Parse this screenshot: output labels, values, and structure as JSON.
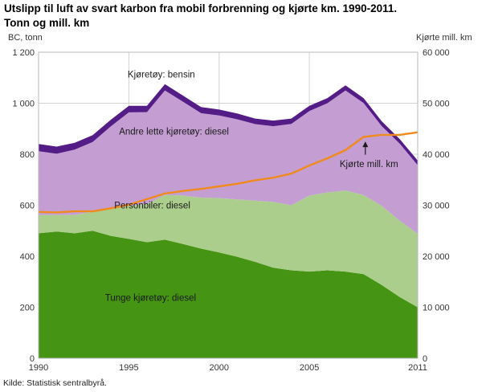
{
  "title": {
    "line1": "Utslipp til luft av svart karbon fra mobil forbrenning og kjørte km. 1990-2011.",
    "line2": "Tonn og mill. km"
  },
  "source": "Kilde: Statistisk sentralbyrå.",
  "axes": {
    "left": {
      "caption": "BC, tonn",
      "range": [
        0,
        1200
      ],
      "ticks_values": [
        0,
        200,
        400,
        600,
        800,
        1000,
        1200
      ],
      "ticks_labels": [
        "0",
        "200",
        "400",
        "600",
        "800",
        "1 000",
        "1 200"
      ]
    },
    "right": {
      "caption": "Kjørte mill. km",
      "range": [
        0,
        60000
      ],
      "ticks_values": [
        0,
        10000,
        20000,
        30000,
        40000,
        50000,
        60000
      ],
      "ticks_labels": [
        "0",
        "10 000",
        "20 000",
        "30 000",
        "40 000",
        "50 000",
        "60 000"
      ]
    },
    "x": {
      "range": [
        1990,
        2011
      ],
      "ticks_values": [
        1990,
        1995,
        2000,
        2005,
        2011
      ],
      "ticks_labels": [
        "1990",
        "1995",
        "2000",
        "2005",
        "2011"
      ]
    }
  },
  "chart_data": {
    "type": "area",
    "stacked": true,
    "title": "Utslipp til luft av svart karbon fra mobil forbrenning og kjørte km. 1990-2011. Tonn og mill. km",
    "xlabel": "",
    "ylabel_left": "BC, tonn",
    "ylabel_right": "Kjørte mill. km",
    "ylim_left": [
      0,
      1200
    ],
    "ylim_right": [
      0,
      60000
    ],
    "grid": true,
    "x": [
      1990,
      1991,
      1992,
      1993,
      1994,
      1995,
      1996,
      1997,
      1998,
      1999,
      2000,
      2001,
      2002,
      2003,
      2004,
      2005,
      2006,
      2007,
      2008,
      2009,
      2010,
      2011
    ],
    "series": [
      {
        "name": "Tunge kjøretøy: diesel",
        "type": "area",
        "axis": "left",
        "color": "#459413",
        "values": [
          490,
          497,
          490,
          500,
          480,
          468,
          455,
          465,
          448,
          430,
          415,
          398,
          378,
          355,
          345,
          340,
          345,
          340,
          330,
          288,
          240,
          200
        ]
      },
      {
        "name": "Personbiler: diesel",
        "type": "area",
        "axis": "left",
        "color": "#abce8d",
        "values": [
          72,
          65,
          72,
          75,
          108,
          130,
          150,
          175,
          190,
          200,
          213,
          225,
          240,
          258,
          255,
          298,
          305,
          318,
          310,
          310,
          300,
          288
        ]
      },
      {
        "name": "Andre lette kjøretøy: diesel",
        "type": "area",
        "axis": "left",
        "color": "#c49ed3",
        "values": [
          250,
          240,
          256,
          273,
          321,
          366,
          360,
          410,
          368,
          331,
          324,
          314,
          300,
          297,
          319,
          331,
          350,
          392,
          361,
          313,
          302,
          269
        ]
      },
      {
        "name": "Kjøretøy: bensin",
        "type": "area",
        "axis": "left",
        "color": "#541c87",
        "values": [
          28,
          28,
          27,
          27,
          26,
          26,
          25,
          25,
          24,
          24,
          23,
          23,
          22,
          22,
          21,
          21,
          20,
          20,
          19,
          19,
          18,
          18
        ]
      },
      {
        "name": "Kjørte mill. km",
        "type": "line",
        "axis": "right",
        "color": "#f08a1d",
        "values": [
          28700,
          28600,
          28800,
          28800,
          29400,
          30100,
          31200,
          32300,
          32800,
          33200,
          33700,
          34200,
          34900,
          35400,
          36200,
          37800,
          39200,
          40800,
          43400,
          43800,
          43800,
          44300
        ]
      }
    ],
    "annotations": [
      {
        "text": "Kjøretøy: bensin",
        "year": 1996.8,
        "value": 1113
      },
      {
        "text": "Andre lette kjøretøy: diesel",
        "year": 1997.5,
        "value": 890
      },
      {
        "text": "Personbiler: diesel",
        "year": 1996.3,
        "value": 600
      },
      {
        "text": "Tunge kjøretøy: diesel",
        "year": 1996.2,
        "value": 238
      },
      {
        "text": "Kjørte mill. km",
        "year": 2008.3,
        "value": 762,
        "arrow": {
          "year": 2008.1,
          "from_value": 798,
          "to_value": 850
        }
      }
    ],
    "colors": {
      "grid": "#d2d2d2",
      "border": "#b9b9b9",
      "tick_text": "#333333",
      "label_text": "#1a1a1a"
    }
  }
}
